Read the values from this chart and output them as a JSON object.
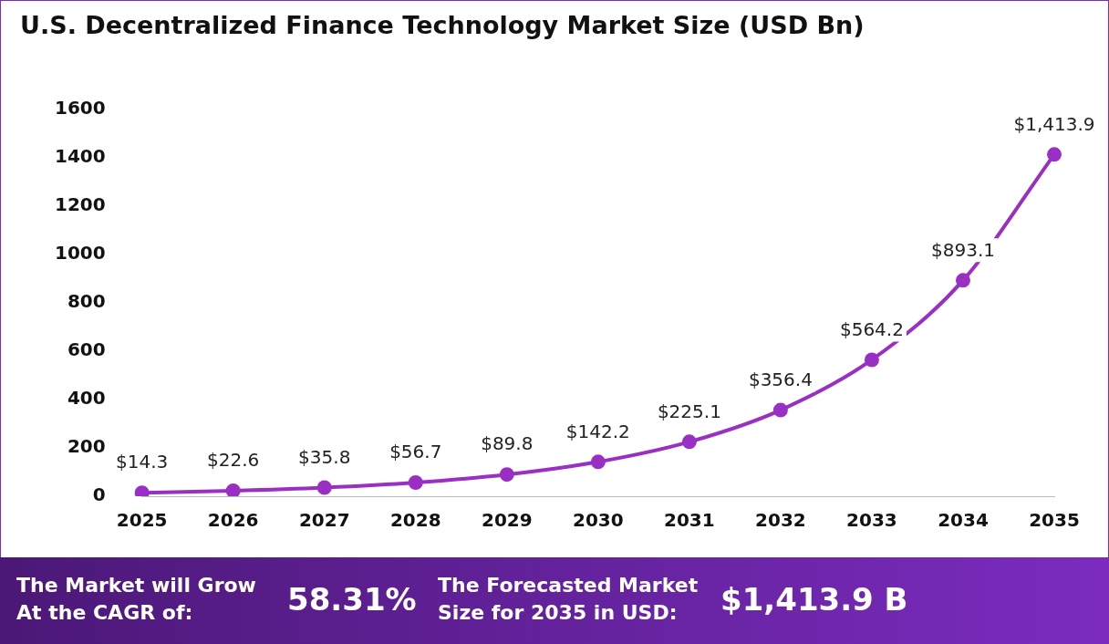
{
  "chart_data": {
    "type": "line",
    "title": "U.S. Decentralized Finance Technology Market Size (USD Bn)",
    "categories": [
      "2025",
      "2026",
      "2027",
      "2028",
      "2029",
      "2030",
      "2031",
      "2032",
      "2033",
      "2034",
      "2035"
    ],
    "series": [
      {
        "color": "#9a2fc4",
        "values": [
          14.3,
          22.6,
          35.8,
          56.7,
          89.8,
          142.2,
          225.1,
          356.4,
          564.2,
          893.1,
          1413.9
        ],
        "value_labels": [
          "$14.3",
          "$22.6",
          "$35.8",
          "$56.7",
          "$89.8",
          "$142.2",
          "$225.1",
          "$356.4",
          "$564.2",
          "$893.1",
          "$1,413.9"
        ]
      }
    ],
    "ylim": [
      0,
      1600
    ],
    "yticks": [
      0,
      200,
      400,
      600,
      800,
      1000,
      1200,
      1400,
      1600
    ],
    "grid": false,
    "legend": false,
    "marker": "circle",
    "line_style": "solid",
    "annotations": [
      "The Market will Grow At the CAGR of:",
      "58.31%",
      "The Forecasted Market Size for 2035 in USD:",
      "$1,413.9 B"
    ]
  }
}
